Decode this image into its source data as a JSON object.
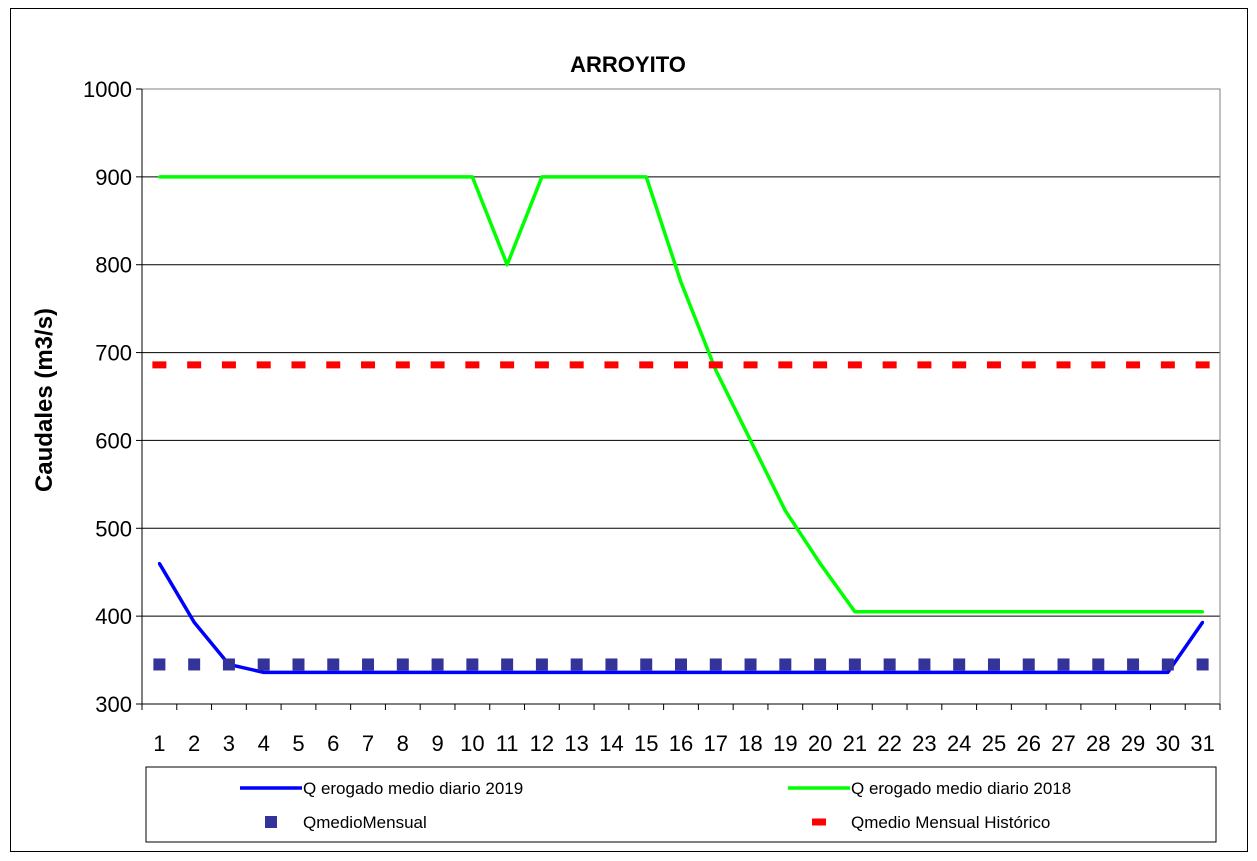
{
  "chart_data": {
    "type": "line",
    "title": "ARROYITO",
    "xlabel": "",
    "ylabel": "Caudales (m3/s)",
    "ylim": [
      300,
      1000
    ],
    "yticks": [
      300,
      400,
      500,
      600,
      700,
      800,
      900,
      1000
    ],
    "categories": [
      "1",
      "2",
      "3",
      "4",
      "5",
      "6",
      "7",
      "8",
      "9",
      "10",
      "11",
      "12",
      "13",
      "14",
      "15",
      "16",
      "17",
      "18",
      "19",
      "20",
      "21",
      "22",
      "23",
      "24",
      "25",
      "26",
      "27",
      "28",
      "29",
      "30",
      "31"
    ],
    "grid": "horizontal",
    "legend_position": "bottom",
    "series": [
      {
        "name": "Q erogado medio diario 2019",
        "style": "line",
        "color": "#0000ff",
        "values": [
          460,
          393,
          345,
          336,
          336,
          336,
          336,
          336,
          336,
          336,
          336,
          336,
          336,
          336,
          336,
          336,
          336,
          336,
          336,
          336,
          336,
          336,
          336,
          336,
          336,
          336,
          336,
          336,
          336,
          336,
          393
        ]
      },
      {
        "name": "Q erogado medio diario 2018",
        "style": "line",
        "color": "#00ff00",
        "values": [
          900,
          900,
          900,
          900,
          900,
          900,
          900,
          900,
          900,
          900,
          800,
          900,
          900,
          900,
          900,
          780,
          680,
          600,
          520,
          460,
          405,
          405,
          405,
          405,
          405,
          405,
          405,
          405,
          405,
          405,
          405
        ]
      },
      {
        "name": "QmedioMensual",
        "style": "marker",
        "color": "#333399",
        "values": [
          345,
          345,
          345,
          345,
          345,
          345,
          345,
          345,
          345,
          345,
          345,
          345,
          345,
          345,
          345,
          345,
          345,
          345,
          345,
          345,
          345,
          345,
          345,
          345,
          345,
          345,
          345,
          345,
          345,
          345,
          345
        ]
      },
      {
        "name": "Qmedio Mensual Histórico",
        "style": "dash",
        "color": "#ff0000",
        "values": [
          686,
          686,
          686,
          686,
          686,
          686,
          686,
          686,
          686,
          686,
          686,
          686,
          686,
          686,
          686,
          686,
          686,
          686,
          686,
          686,
          686,
          686,
          686,
          686,
          686,
          686,
          686,
          686,
          686,
          686,
          686
        ]
      }
    ]
  }
}
